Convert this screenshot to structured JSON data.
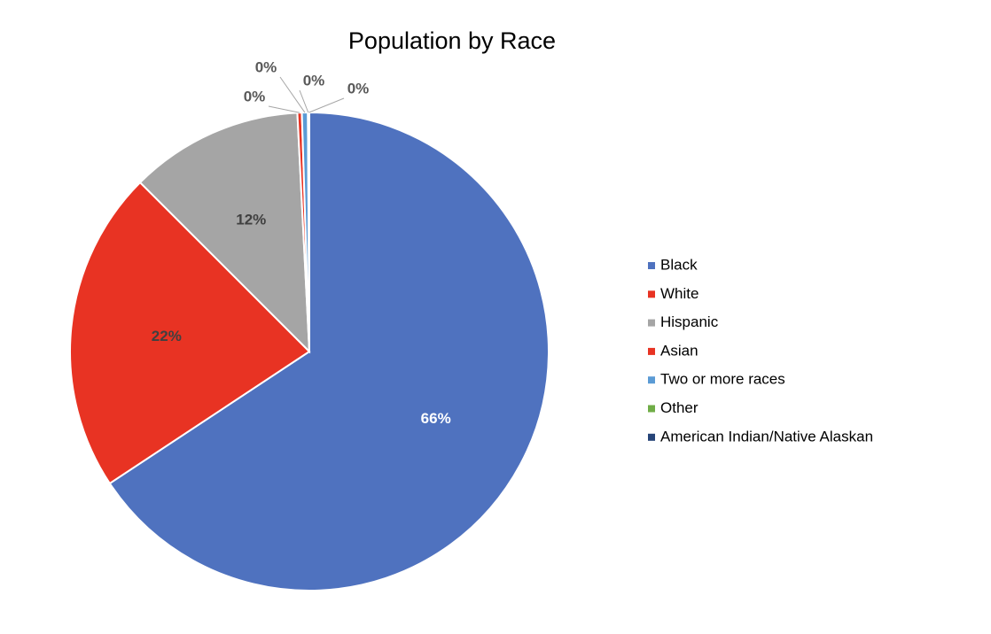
{
  "chart_data": {
    "type": "pie",
    "title": "Population by Race",
    "categories": [
      "Black",
      "White",
      "Hispanic",
      "Asian",
      "Two or more races",
      "Other",
      "American Indian/Native Alaskan"
    ],
    "values": [
      65.7,
      21.8,
      11.7,
      0.3,
      0.4,
      0.05,
      0.05
    ],
    "value_labels": [
      "66%",
      "22%",
      "12%",
      "0%",
      "0%",
      "0%",
      "0%"
    ],
    "colors": [
      "#4f72bf",
      "#e83323",
      "#a5a5a5",
      "#e83323",
      "#5b9bd5",
      "#70ad47",
      "#264478"
    ],
    "legend": "right"
  }
}
